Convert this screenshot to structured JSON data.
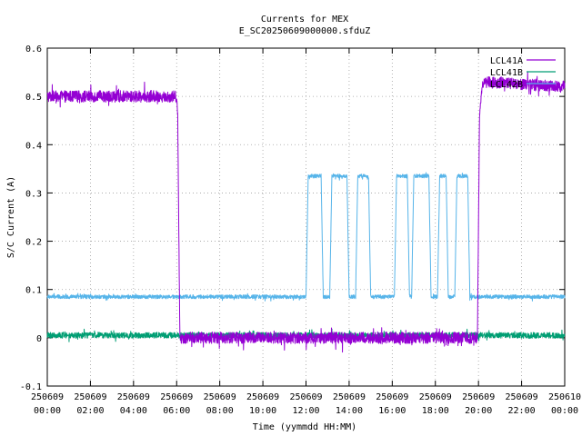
{
  "chart_data": {
    "type": "line",
    "title": "Currents for MEX",
    "subtitle": "E_SC20250609000000.sfduZ",
    "xlabel": "Time (yymmdd HH:MM)",
    "ylabel": "S/C Current (A)",
    "x_unit": "hours",
    "xlim": [
      0,
      24
    ],
    "ylim": [
      -0.1,
      0.6
    ],
    "grid": true,
    "legend_position": "top-right",
    "x_ticks": [
      {
        "x": 0,
        "date": "250609",
        "time": "00:00"
      },
      {
        "x": 2,
        "date": "250609",
        "time": "02:00"
      },
      {
        "x": 4,
        "date": "250609",
        "time": "04:00"
      },
      {
        "x": 6,
        "date": "250609",
        "time": "06:00"
      },
      {
        "x": 8,
        "date": "250609",
        "time": "08:00"
      },
      {
        "x": 10,
        "date": "250609",
        "time": "10:00"
      },
      {
        "x": 12,
        "date": "250609",
        "time": "12:00"
      },
      {
        "x": 14,
        "date": "250609",
        "time": "14:00"
      },
      {
        "x": 16,
        "date": "250609",
        "time": "16:00"
      },
      {
        "x": 18,
        "date": "250609",
        "time": "18:00"
      },
      {
        "x": 20,
        "date": "250609",
        "time": "20:00"
      },
      {
        "x": 22,
        "date": "250609",
        "time": "22:00"
      },
      {
        "x": 24,
        "date": "250610",
        "time": "00:00"
      }
    ],
    "y_ticks": [
      "-0.1",
      "0",
      "0.1",
      "0.2",
      "0.3",
      "0.4",
      "0.5",
      "0.6"
    ],
    "y_tick_values": [
      -0.1,
      0,
      0.1,
      0.2,
      0.3,
      0.4,
      0.5,
      0.6
    ],
    "series": [
      {
        "name": "LCL41A",
        "color": "#9400d3",
        "points": [
          [
            0,
            0.5
          ],
          [
            6.0,
            0.5
          ],
          [
            6.05,
            0.46
          ],
          [
            6.15,
            0.0
          ],
          [
            6.3,
            0.0
          ],
          [
            19.95,
            0.0
          ],
          [
            20.05,
            0.47
          ],
          [
            20.2,
            0.53
          ],
          [
            24,
            0.52
          ]
        ],
        "noise": 0.012
      },
      {
        "name": "LCL41B",
        "color": "#009e73",
        "points": [
          [
            0,
            0.005
          ],
          [
            24,
            0.005
          ]
        ],
        "noise": 0.006
      },
      {
        "name": "LCL42B",
        "color": "#56b4e9",
        "points": [
          [
            0,
            0.085
          ],
          [
            12.0,
            0.085
          ],
          [
            12.1,
            0.335
          ],
          [
            12.7,
            0.335
          ],
          [
            12.8,
            0.085
          ],
          [
            13.1,
            0.085
          ],
          [
            13.2,
            0.335
          ],
          [
            13.9,
            0.335
          ],
          [
            14.0,
            0.085
          ],
          [
            14.3,
            0.085
          ],
          [
            14.4,
            0.335
          ],
          [
            14.9,
            0.335
          ],
          [
            15.0,
            0.085
          ],
          [
            16.1,
            0.085
          ],
          [
            16.2,
            0.335
          ],
          [
            16.7,
            0.335
          ],
          [
            16.8,
            0.085
          ],
          [
            16.9,
            0.085
          ],
          [
            17.0,
            0.335
          ],
          [
            17.7,
            0.335
          ],
          [
            17.8,
            0.085
          ],
          [
            18.1,
            0.085
          ],
          [
            18.2,
            0.335
          ],
          [
            18.5,
            0.335
          ],
          [
            18.6,
            0.085
          ],
          [
            18.9,
            0.085
          ],
          [
            19.0,
            0.335
          ],
          [
            19.5,
            0.335
          ],
          [
            19.6,
            0.085
          ],
          [
            24,
            0.085
          ]
        ],
        "noise": 0.004
      }
    ]
  }
}
